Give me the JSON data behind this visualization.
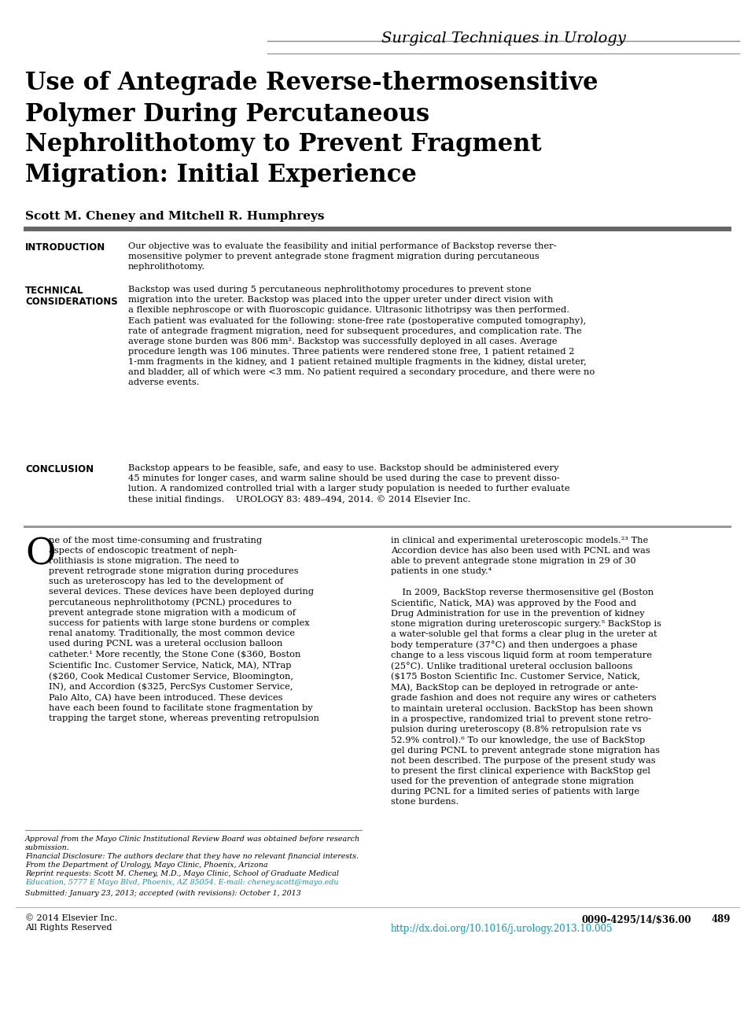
{
  "bg_color": "#ffffff",
  "header_text": "Surgical Techniques in Urology",
  "title_line1": "Use of Antegrade Reverse-thermosensitive",
  "title_line2": "Polymer During Percutaneous",
  "title_line3": "Nephrolithotomy to Prevent Fragment",
  "title_line4": "Migration: Initial Experience",
  "authors": "Scott M. Cheney and Mitchell R. Humphreys",
  "intro_label": "INTRODUCTION",
  "intro_text": "Our objective was to evaluate the feasibility and initial performance of Backstop reverse ther-\nmosensitive polymer to prevent antegrade stone fragment migration during percutaneous\nnephrolithotomy.",
  "tech_label1": "TECHNICAL",
  "tech_label2": "CONSIDERATIONS",
  "tech_text": "Backstop was used during 5 percutaneous nephrolithotomy procedures to prevent stone\nmigration into the ureter. Backstop was placed into the upper ureter under direct vision with\na flexible nephroscope or with fluoroscopic guidance. Ultrasonic lithotripsy was then performed.\nEach patient was evaluated for the following: stone-free rate (postoperative computed tomography),\nrate of antegrade fragment migration, need for subsequent procedures, and complication rate. The\naverage stone burden was 806 mm². Backstop was successfully deployed in all cases. Average\nprocedure length was 106 minutes. Three patients were rendered stone free, 1 patient retained 2\n1-mm fragments in the kidney, and 1 patient retained multiple fragments in the kidney, distal ureter,\nand bladder, all of which were <3 mm. No patient required a secondary procedure, and there were no\nadverse events.",
  "conc_label": "CONCLUSION",
  "conc_text": "Backstop appears to be feasible, safe, and easy to use. Backstop should be administered every\n45 minutes for longer cases, and warm saline should be used during the case to prevent disso-\nlution. A randomized controlled trial with a larger study population is needed to further evaluate\nthese initial findings.    UROLOGY 83: 489–494, 2014. © 2014 Elsevier Inc.",
  "col1_dropcap": "O",
  "col1_text": "ne of the most time-consuming and frustrating\naspects of endoscopic treatment of neph-\nrolithiasis is stone migration. The need to\nprevent retrograde stone migration during procedures\nsuch as ureteroscopy has led to the development of\nseveral devices. These devices have been deployed during\npercutaneous nephrolithotomy (PCNL) procedures to\nprevent antegrade stone migration with a modicum of\nsuccess for patients with large stone burdens or complex\nrenal anatomy. Traditionally, the most common device\nused during PCNL was a ureteral occlusion balloon\ncatheter.¹ More recently, the Stone Cone ($360, Boston\nScientific Inc. Customer Service, Natick, MA), NTrap\n($260, Cook Medical Customer Service, Bloomington,\nIN), and Accordion ($325, PercSys Customer Service,\nPalo Alto, CA) have been introduced. These devices\nhave each been found to facilitate stone fragmentation by\ntrapping the target stone, whereas preventing retropulsion",
  "col2_text": "in clinical and experimental ureteroscopic models.²³ The\nAccordion device has also been used with PCNL and was\nable to prevent antegrade stone migration in 29 of 30\npatients in one study.⁴\n\n    In 2009, BackStop reverse thermosensitive gel (Boston\nScientific, Natick, MA) was approved by the Food and\nDrug Administration for use in the prevention of kidney\nstone migration during ureteroscopic surgery.⁵ BackStop is\na water-soluble gel that forms a clear plug in the ureter at\nbody temperature (37°C) and then undergoes a phase\nchange to a less viscous liquid form at room temperature\n(25°C). Unlike traditional ureteral occlusion balloons\n($175 Boston Scientific Inc. Customer Service, Natick,\nMA), BackStop can be deployed in retrograde or ante-\ngrade fashion and does not require any wires or catheters\nto maintain ureteral occlusion. BackStop has been shown\nin a prospective, randomized trial to prevent stone retro-\npulsion during ureteroscopy (8.8% retropulsion rate vs\n52.9% control).⁶ To our knowledge, the use of BackStop\ngel during PCNL to prevent antegrade stone migration has\nnot been described. The purpose of the present study was\nto present the first clinical experience with BackStop gel\nused for the prevention of antegrade stone migration\nduring PCNL for a limited series of patients with large\nstone burdens.",
  "fn1": "Approval from the Mayo Clinic Institutional Review Board was obtained before research",
  "fn1b": "submission.",
  "fn2": "Financial Disclosure: The authors declare that they have no relevant financial interests.",
  "fn3": "From the Department of Urology, Mayo Clinic, Phoenix, Arizona",
  "fn4a": "Reprint requests: Scott M. Cheney, M.D., Mayo Clinic, School of Graduate Medical",
  "fn4b": "Education, 5777 E Mayo Blvd, Phoenix, AZ 85054. E-mail: cheney.scott@mayo.edu",
  "fn5": "Submitted: January 23, 2013; accepted (with revisions): October 1, 2013",
  "footer_left1": "© 2014 Elsevier Inc.",
  "footer_left2": "All Rights Reserved",
  "footer_issn": "0090-4295/14/$36.00",
  "footer_page": "489",
  "footer_url": "http://dx.doi.org/10.1016/j.urology.2013.10.005",
  "url_color": "#0099bb",
  "gray_line": "#888888",
  "dark_line": "#555555"
}
